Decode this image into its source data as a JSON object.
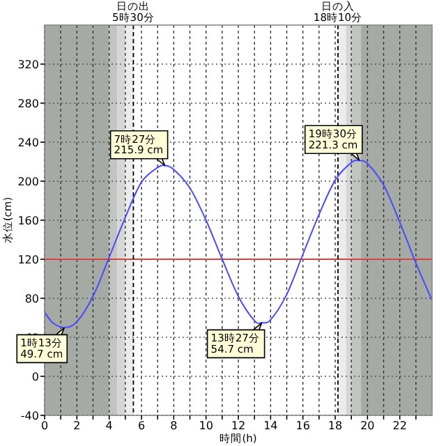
{
  "chart_data": {
    "type": "line",
    "xlabel": "時間(h)",
    "ylabel": "水位(cm)",
    "x": [
      0,
      0.5,
      1.22,
      2,
      3,
      4,
      5,
      6,
      7,
      7.45,
      8,
      9,
      10,
      11,
      12,
      13,
      13.45,
      14,
      15,
      16,
      17,
      18,
      19,
      19.5,
      20,
      21,
      22,
      23,
      24
    ],
    "series": [
      {
        "color": "#4a4aff",
        "values": [
          66,
          55,
          50,
          56,
          82,
          122,
          163,
          199,
          214,
          216,
          212,
          193,
          160,
          120,
          82,
          57,
          55,
          58,
          84,
          125,
          166,
          201,
          219,
          221,
          218,
          196,
          158,
          116,
          78
        ]
      }
    ],
    "xlim": [
      0,
      24
    ],
    "xticks": [
      0,
      {
        "value": 1,
        "label": null
      },
      2,
      {
        "value": 3,
        "label": null
      },
      4,
      {
        "value": 5,
        "label": null
      },
      6,
      {
        "value": 7,
        "label": null
      },
      8,
      {
        "value": 9,
        "label": null
      },
      10,
      {
        "value": 11,
        "label": null
      },
      12,
      {
        "value": 13,
        "label": null
      },
      14,
      {
        "value": 15,
        "label": null
      },
      16,
      {
        "value": 17,
        "label": null
      },
      18,
      {
        "value": 19,
        "label": null
      },
      20,
      {
        "value": 21,
        "label": null
      },
      22,
      {
        "value": 23,
        "label": null
      }
    ],
    "ylim": [
      -40,
      360
    ],
    "yticks": [
      -40,
      0,
      40,
      80,
      120,
      160,
      200,
      240,
      280,
      320
    ],
    "grid": true,
    "marker": "none",
    "line_style": "solid",
    "bands": [
      {
        "axis": "x",
        "from": 0,
        "to": 4,
        "color": "#a5aaa5"
      },
      {
        "axis": "x",
        "from": 4,
        "to": 4.5,
        "color": "#c2c4c2"
      },
      {
        "axis": "x",
        "from": 4.5,
        "to": 5,
        "color": "#d6d6d6"
      },
      {
        "axis": "x",
        "from": 5,
        "to": 5.5,
        "color": "#ececec"
      },
      {
        "axis": "x",
        "from": 18.17,
        "to": 18.67,
        "color": "#ececec"
      },
      {
        "axis": "x",
        "from": 18.67,
        "to": 19,
        "color": "#d6d6d6"
      },
      {
        "axis": "x",
        "from": 19,
        "to": 19.6,
        "color": "#c2c4c2"
      },
      {
        "axis": "x",
        "from": 19.6,
        "to": 24,
        "color": "#a5aaa5"
      }
    ],
    "ref_lines": [
      {
        "axis": "y",
        "value": 120,
        "color": "#e04040",
        "line_style": "solid"
      },
      {
        "axis": "x",
        "value": 5.5,
        "label": "日の出\n5時30分",
        "color": "#000000",
        "line_style": "dashed"
      },
      {
        "axis": "x",
        "value": 18.17,
        "label": "日の入\n18時10分",
        "color": "#000000",
        "line_style": "dashed"
      }
    ],
    "annotations": [
      {
        "text": "1時13分\n49.7 cm",
        "x": 1.22,
        "y": 49.7
      },
      {
        "text": "7時27分\n215.9 cm",
        "x": 7.45,
        "y": 215.9
      },
      {
        "text": "13時27分\n54.7 cm",
        "x": 13.45,
        "y": 54.7
      },
      {
        "text": "19時30分\n221.3 cm",
        "x": 19.5,
        "y": 221.3
      }
    ]
  }
}
